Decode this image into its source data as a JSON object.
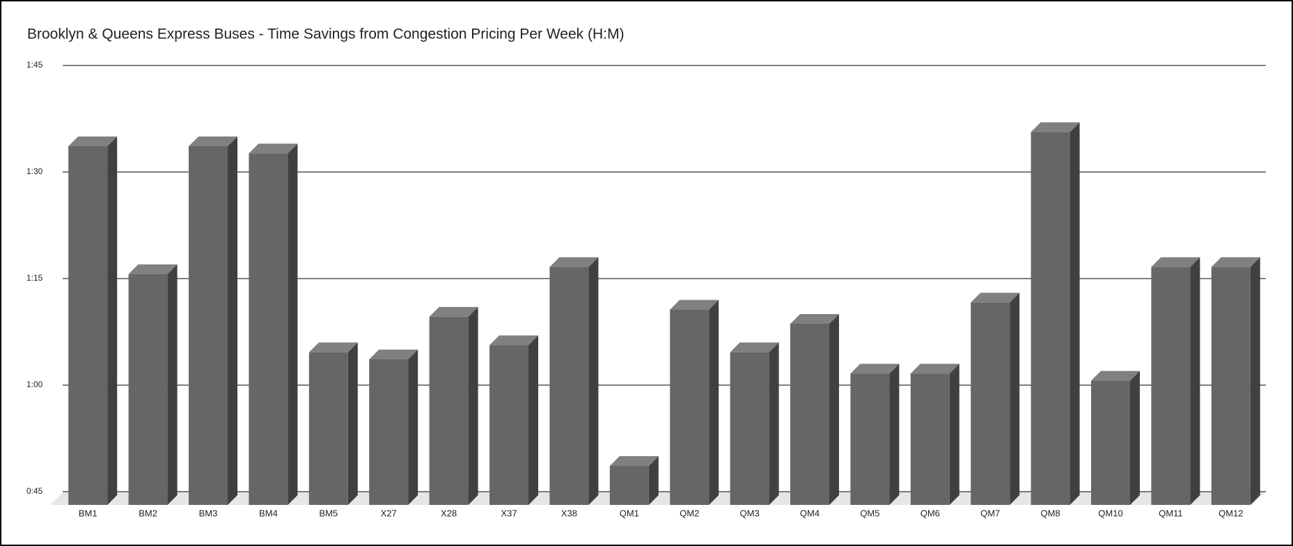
{
  "chart_data": {
    "type": "bar3d",
    "title": "Brooklyn & Queens Express Buses - Time Savings from Congestion Pricing Per Week (H:M)",
    "categories": [
      "BM1",
      "BM2",
      "BM3",
      "BM4",
      "BM5",
      "X27",
      "X28",
      "X37",
      "X38",
      "QM1",
      "QM2",
      "QM3",
      "QM4",
      "QM5",
      "QM6",
      "QM7",
      "QM8",
      "QM10",
      "QM11",
      "QM12"
    ],
    "values": [
      95,
      77,
      95,
      94,
      66,
      65,
      71,
      67,
      78,
      50,
      72,
      66,
      70,
      63,
      63,
      73,
      97,
      62,
      78,
      78
    ],
    "color": "#666666",
    "ylim": [
      45,
      105
    ],
    "yticks": [
      {
        "value": 45,
        "label": "0:45"
      },
      {
        "value": 60,
        "label": "1:00"
      },
      {
        "value": 75,
        "label": "1:15"
      },
      {
        "value": 90,
        "label": "1:30"
      },
      {
        "value": 105,
        "label": "1:45"
      }
    ],
    "grid": true
  }
}
